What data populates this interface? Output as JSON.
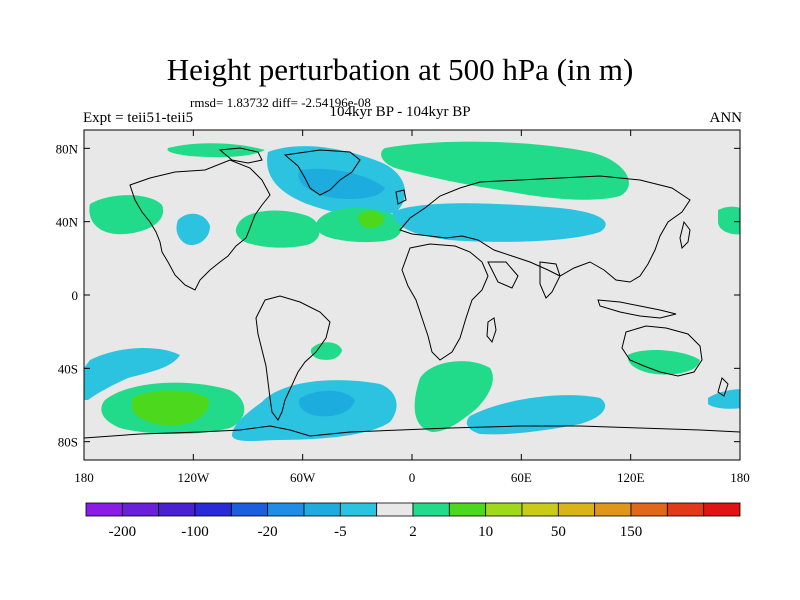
{
  "title": "Height perturbation at 500 hPa (in m)",
  "stats_line": "rmsd= 1.83732 diff= -2.54196e-08",
  "left_label": "Expt = teii51-teii5",
  "center_label": "104kyr BP - 104kyr BP",
  "right_label": "ANN",
  "map": {
    "projection": "cylindrical-equidistant",
    "lon_range": [
      -180,
      180
    ],
    "lat_range": [
      -90,
      90
    ],
    "background_color": "#e8e8e8",
    "coastline_color": "#000000",
    "lat_ticks": [
      {
        "lat": 80,
        "label": "80N"
      },
      {
        "lat": 40,
        "label": "40N"
      },
      {
        "lat": 0,
        "label": "0"
      },
      {
        "lat": -40,
        "label": "40S"
      },
      {
        "lat": -80,
        "label": "80S"
      }
    ],
    "lon_ticks": [
      {
        "lon": -180,
        "label": "180"
      },
      {
        "lon": -120,
        "label": "120W"
      },
      {
        "lon": -60,
        "label": "60W"
      },
      {
        "lon": 0,
        "label": "0"
      },
      {
        "lon": 60,
        "label": "60E"
      },
      {
        "lon": 120,
        "label": "120E"
      },
      {
        "lon": 180,
        "label": "180"
      }
    ]
  },
  "colorbar": {
    "colors": [
      "#8a1ce6",
      "#6a1fd9",
      "#4a20d0",
      "#2a2ad8",
      "#1a5fe0",
      "#1f8ee6",
      "#1cadde",
      "#2bc3e0",
      "#e8e8e8",
      "#22db8a",
      "#4cd81c",
      "#a0d81c",
      "#c8cc18",
      "#d8b418",
      "#e09618",
      "#e06818",
      "#e03a18",
      "#e01414"
    ],
    "labels": [
      {
        "boundary": 1,
        "text": "-200"
      },
      {
        "boundary": 3,
        "text": "-100"
      },
      {
        "boundary": 5,
        "text": "-20"
      },
      {
        "boundary": 7,
        "text": "-5"
      },
      {
        "boundary": 9,
        "text": "2"
      },
      {
        "boundary": 11,
        "text": "10"
      },
      {
        "boundary": 13,
        "text": "50"
      },
      {
        "boundary": 15,
        "text": "150"
      }
    ]
  }
}
